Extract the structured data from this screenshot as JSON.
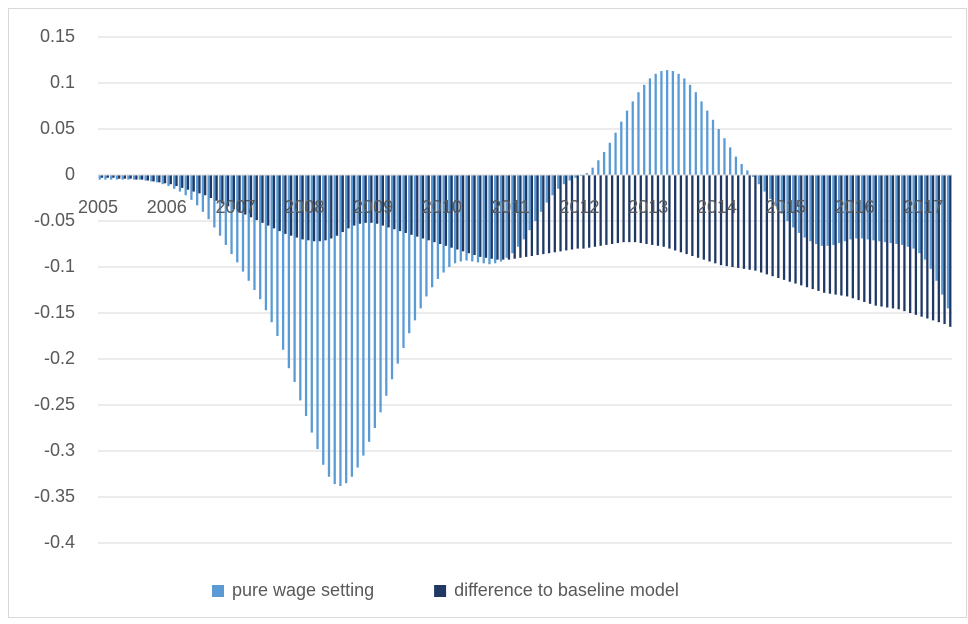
{
  "chart_data": {
    "type": "bar",
    "categories": [
      "2005",
      null,
      null,
      null,
      null,
      null,
      null,
      null,
      null,
      null,
      null,
      null,
      "2006",
      null,
      null,
      null,
      null,
      null,
      null,
      null,
      null,
      null,
      null,
      null,
      "2007",
      null,
      null,
      null,
      null,
      null,
      null,
      null,
      null,
      null,
      null,
      null,
      "2008",
      null,
      null,
      null,
      null,
      null,
      null,
      null,
      null,
      null,
      null,
      null,
      "2009",
      null,
      null,
      null,
      null,
      null,
      null,
      null,
      null,
      null,
      null,
      null,
      "2010",
      null,
      null,
      null,
      null,
      null,
      null,
      null,
      null,
      null,
      null,
      null,
      "2011",
      null,
      null,
      null,
      null,
      null,
      null,
      null,
      null,
      null,
      null,
      null,
      "2012",
      null,
      null,
      null,
      null,
      null,
      null,
      null,
      null,
      null,
      null,
      null,
      "2013",
      null,
      null,
      null,
      null,
      null,
      null,
      null,
      null,
      null,
      null,
      null,
      "2014",
      null,
      null,
      null,
      null,
      null,
      null,
      null,
      null,
      null,
      null,
      null,
      "2015",
      null,
      null,
      null,
      null,
      null,
      null,
      null,
      null,
      null,
      null,
      null,
      "2016",
      null,
      null,
      null,
      null,
      null,
      null,
      null,
      null,
      null,
      null,
      null,
      "2017",
      null,
      null,
      null,
      null
    ],
    "series": [
      {
        "name": "pure wage setting",
        "color": "#5b9bd5",
        "values": [
          -0.005,
          -0.005,
          -0.005,
          -0.005,
          -0.005,
          -0.005,
          -0.005,
          -0.005,
          -0.006,
          -0.007,
          -0.008,
          -0.01,
          -0.012,
          -0.015,
          -0.018,
          -0.022,
          -0.027,
          -0.033,
          -0.04,
          -0.048,
          -0.057,
          -0.066,
          -0.076,
          -0.086,
          -0.095,
          -0.105,
          -0.115,
          -0.125,
          -0.135,
          -0.147,
          -0.16,
          -0.175,
          -0.19,
          -0.21,
          -0.225,
          -0.245,
          -0.262,
          -0.28,
          -0.298,
          -0.315,
          -0.328,
          -0.336,
          -0.338,
          -0.335,
          -0.328,
          -0.318,
          -0.305,
          -0.29,
          -0.275,
          -0.258,
          -0.24,
          -0.222,
          -0.205,
          -0.188,
          -0.172,
          -0.158,
          -0.145,
          -0.132,
          -0.122,
          -0.113,
          -0.106,
          -0.1,
          -0.096,
          -0.094,
          -0.093,
          -0.094,
          -0.095,
          -0.096,
          -0.097,
          -0.096,
          -0.094,
          -0.09,
          -0.085,
          -0.078,
          -0.07,
          -0.06,
          -0.05,
          -0.04,
          -0.03,
          -0.022,
          -0.015,
          -0.01,
          -0.006,
          -0.003,
          -0.001,
          0.002,
          0.008,
          0.016,
          0.025,
          0.035,
          0.046,
          0.058,
          0.07,
          0.08,
          0.09,
          0.098,
          0.105,
          0.11,
          0.113,
          0.114,
          0.113,
          0.11,
          0.105,
          0.098,
          0.09,
          0.08,
          0.07,
          0.06,
          0.05,
          0.04,
          0.03,
          0.02,
          0.012,
          0.005,
          -0.002,
          -0.01,
          -0.018,
          -0.026,
          -0.034,
          -0.042,
          -0.05,
          -0.057,
          -0.063,
          -0.068,
          -0.072,
          -0.075,
          -0.077,
          -0.077,
          -0.076,
          -0.074,
          -0.072,
          -0.07,
          -0.069,
          -0.069,
          -0.07,
          -0.071,
          -0.072,
          -0.073,
          -0.074,
          -0.075,
          -0.076,
          -0.078,
          -0.08,
          -0.085,
          -0.092,
          -0.102,
          -0.115,
          -0.13,
          -0.145
        ]
      },
      {
        "name": "difference to baseline model",
        "color": "#1f3864",
        "values": [
          -0.003,
          -0.003,
          -0.003,
          -0.004,
          -0.004,
          -0.004,
          -0.005,
          -0.005,
          -0.006,
          -0.007,
          -0.008,
          -0.009,
          -0.01,
          -0.012,
          -0.014,
          -0.016,
          -0.018,
          -0.02,
          -0.022,
          -0.025,
          -0.028,
          -0.031,
          -0.034,
          -0.037,
          -0.04,
          -0.043,
          -0.046,
          -0.049,
          -0.052,
          -0.055,
          -0.058,
          -0.061,
          -0.064,
          -0.066,
          -0.068,
          -0.07,
          -0.071,
          -0.072,
          -0.072,
          -0.071,
          -0.069,
          -0.066,
          -0.062,
          -0.058,
          -0.055,
          -0.053,
          -0.052,
          -0.052,
          -0.053,
          -0.055,
          -0.057,
          -0.059,
          -0.061,
          -0.063,
          -0.065,
          -0.067,
          -0.069,
          -0.071,
          -0.073,
          -0.075,
          -0.077,
          -0.079,
          -0.081,
          -0.083,
          -0.085,
          -0.087,
          -0.089,
          -0.09,
          -0.091,
          -0.092,
          -0.092,
          -0.092,
          -0.091,
          -0.09,
          -0.089,
          -0.088,
          -0.087,
          -0.086,
          -0.085,
          -0.084,
          -0.083,
          -0.082,
          -0.081,
          -0.08,
          -0.08,
          -0.079,
          -0.078,
          -0.077,
          -0.076,
          -0.075,
          -0.074,
          -0.073,
          -0.073,
          -0.073,
          -0.074,
          -0.075,
          -0.076,
          -0.077,
          -0.078,
          -0.08,
          -0.082,
          -0.084,
          -0.086,
          -0.088,
          -0.09,
          -0.092,
          -0.094,
          -0.096,
          -0.098,
          -0.099,
          -0.1,
          -0.101,
          -0.102,
          -0.103,
          -0.104,
          -0.106,
          -0.108,
          -0.11,
          -0.112,
          -0.114,
          -0.116,
          -0.118,
          -0.12,
          -0.122,
          -0.124,
          -0.126,
          -0.128,
          -0.129,
          -0.13,
          -0.131,
          -0.132,
          -0.134,
          -0.136,
          -0.138,
          -0.14,
          -0.142,
          -0.143,
          -0.144,
          -0.145,
          -0.146,
          -0.148,
          -0.15,
          -0.152,
          -0.154,
          -0.156,
          -0.158,
          -0.16,
          -0.162,
          -0.165
        ]
      }
    ],
    "ylim": [
      -0.4,
      0.15
    ],
    "yticks": [
      0.15,
      0.1,
      0.05,
      0,
      -0.05,
      -0.1,
      -0.15,
      -0.2,
      -0.25,
      -0.3,
      -0.35,
      -0.4
    ],
    "grid": true,
    "legend": "bottom"
  }
}
